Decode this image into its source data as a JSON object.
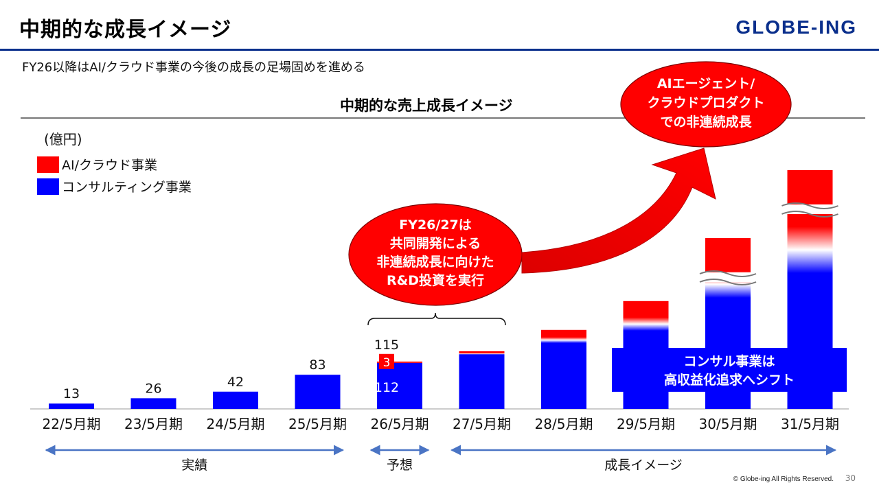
{
  "header": {
    "title": "中期的な成長イメージ",
    "logo": "GLOBE-ING",
    "subtitle": "FY26以降はAI/クラウド事業の今後の成長の足場固めを進める"
  },
  "colors": {
    "ai_cloud": "#ff0000",
    "consulting": "#0000ff",
    "brand": "#0a2f8c"
  },
  "chart_data": {
    "type": "bar",
    "title": "中期的な売上成長イメージ",
    "unit": "(億円)",
    "legend": [
      {
        "name": "AI/クラウド事業",
        "color": "#ff0000"
      },
      {
        "name": "コンサルティング事業",
        "color": "#0000ff"
      }
    ],
    "categories": [
      "22/5月期",
      "23/5月期",
      "24/5月期",
      "25/5月期",
      "26/5月期",
      "27/5月期",
      "28/5月期",
      "29/5月期",
      "30/5月期",
      "31/5月期"
    ],
    "series": [
      {
        "name": "コンサルティング事業",
        "values": [
          13,
          26,
          42,
          83,
          112,
          null,
          null,
          null,
          null,
          null
        ]
      },
      {
        "name": "AI/クラウド事業",
        "values": [
          0,
          0,
          0,
          0,
          3,
          null,
          null,
          null,
          null,
          null
        ]
      }
    ],
    "totals": [
      13,
      26,
      42,
      83,
      115,
      null,
      null,
      null,
      null,
      null
    ],
    "image_bars": [
      {
        "category": "27/5月期",
        "total": 140,
        "blue": 132,
        "broken": false
      },
      {
        "category": "28/5月期",
        "total": 192,
        "blue": 160,
        "broken": false
      },
      {
        "category": "29/5月期",
        "total": 262,
        "blue": 190,
        "broken": false
      },
      {
        "category": "30/5月期",
        "total": 415,
        "blue": 270,
        "broken": true
      },
      {
        "category": "31/5月期",
        "total": 580,
        "blue": 330,
        "broken": true
      }
    ],
    "ylim": [
      0,
      600
    ],
    "periods": [
      {
        "label": "実績",
        "from": "22/5月期",
        "to": "25/5月期"
      },
      {
        "label": "予想",
        "from": "26/5月期",
        "to": "26/5月期"
      },
      {
        "label": "成長イメージ",
        "from": "27/5月期",
        "to": "31/5月期"
      }
    ],
    "annotations": {
      "rd": [
        "FY26/27は",
        "共同開発による",
        "非連続成長に向けた",
        "R&D投資を実行"
      ],
      "ai": [
        "AIエージェント/",
        "クラウドプロダクト",
        "での非連続成長"
      ],
      "consult": [
        "コンサル事業は",
        "高収益化追求へシフト"
      ]
    }
  },
  "footer": {
    "copyright": "© Globe-ing All Rights Reserved.",
    "page": "30"
  }
}
